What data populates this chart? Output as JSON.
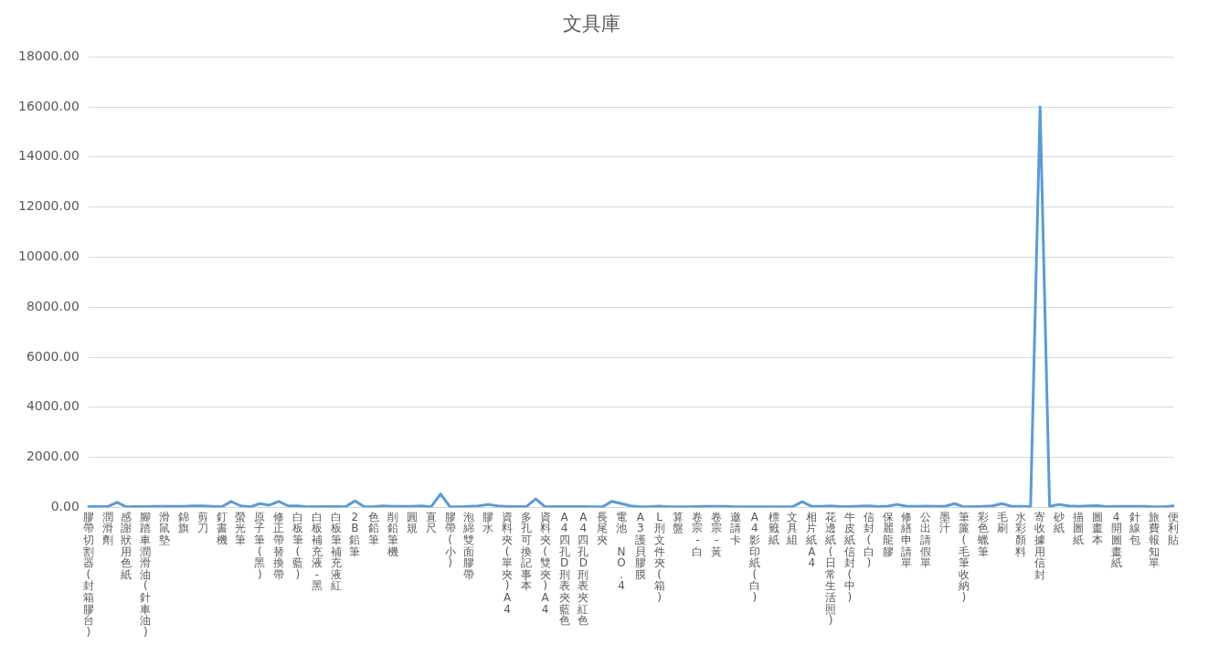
{
  "chart_data": {
    "type": "line",
    "title": "文具庫",
    "categories": [
      "膠帶切割器(封箱膠台)",
      null,
      "潤滑劑",
      null,
      "感謝狀用色紙",
      null,
      "腳踏車潤滑油(針車油)",
      null,
      "滑鼠墊",
      null,
      "錦旗",
      null,
      "剪刀",
      null,
      "釘書機",
      null,
      "螢光筆",
      null,
      "原子筆(黑)",
      null,
      "修正帶替換帶",
      null,
      "白板筆(藍)",
      null,
      "白板補充液-黑",
      null,
      "白板筆補充液紅",
      null,
      "2B鉛筆",
      null,
      "色鉛筆",
      null,
      "削鉛筆機",
      null,
      "圓規",
      null,
      "直尺",
      null,
      "膠帶(小)",
      null,
      "泡綿雙面膠帶",
      null,
      "膠水",
      null,
      "資料夾(單夾)A4",
      null,
      "多孔可換記事本",
      null,
      "資料夾(雙夾)A4",
      null,
      "A4四孔D刑表夾藍色",
      null,
      "A4四孔D刑表夾紅色",
      null,
      "長尾夾",
      null,
      "電池 NO.4",
      null,
      "A3護貝膠膜",
      null,
      "L刑文件夾(箱)",
      null,
      "算盤",
      null,
      "卷宗-白",
      null,
      "卷宗-黃",
      null,
      "邀請卡",
      null,
      "A4影印紙(白)",
      null,
      "標籤紙",
      null,
      "文具組",
      null,
      "相片紙A4",
      null,
      "花邊紙(日常生活照)",
      null,
      "牛皮紙信封(中)",
      null,
      "信封(白)",
      null,
      "保麗龍膠",
      null,
      "修繕申請單",
      null,
      "公出請假單",
      null,
      "墨汁",
      null,
      "筆簾(毛筆收納)",
      null,
      "彩色蠟筆",
      null,
      "毛刷",
      null,
      "水彩顏料",
      null,
      "寄收據用信封",
      null,
      "砂紙",
      null,
      "描圖紙",
      null,
      "圖畫本",
      null,
      "4開圖畫紙",
      null,
      "針線包",
      null,
      "旅費報知單",
      null,
      "便利貼"
    ],
    "series": [
      {
        "color": "#5b9bd5",
        "values": [
          30,
          30,
          30,
          200,
          20,
          30,
          30,
          40,
          40,
          40,
          40,
          60,
          60,
          40,
          20,
          240,
          60,
          20,
          150,
          90,
          240,
          60,
          60,
          20,
          30,
          30,
          30,
          20,
          260,
          20,
          30,
          60,
          40,
          40,
          40,
          60,
          20,
          540,
          20,
          20,
          40,
          60,
          120,
          60,
          30,
          30,
          30,
          340,
          20,
          30,
          30,
          30,
          30,
          20,
          20,
          240,
          150,
          60,
          20,
          30,
          50,
          20,
          20,
          20,
          30,
          40,
          40,
          40,
          20,
          20,
          20,
          20,
          20,
          20,
          30,
          230,
          40,
          40,
          60,
          30,
          30,
          50,
          60,
          30,
          50,
          120,
          40,
          40,
          50,
          40,
          40,
          150,
          20,
          30,
          40,
          60,
          150,
          40,
          40,
          30,
          16000,
          40,
          120,
          60,
          40,
          60,
          70,
          30,
          40,
          40,
          40,
          40,
          20,
          20,
          60
        ]
      }
    ],
    "ylim": [
      0,
      18000
    ],
    "yticks": [
      {
        "value": 0,
        "label": "0.00"
      },
      {
        "value": 2000,
        "label": "2000.00"
      },
      {
        "value": 4000,
        "label": "4000.00"
      },
      {
        "value": 6000,
        "label": "6000.00"
      },
      {
        "value": 8000,
        "label": "8000.00"
      },
      {
        "value": 10000,
        "label": "10000.00"
      },
      {
        "value": 12000,
        "label": "12000.00"
      },
      {
        "value": 14000,
        "label": "14000.00"
      },
      {
        "value": 16000,
        "label": "16000.00"
      },
      {
        "value": 18000,
        "label": "18000.00"
      }
    ],
    "grid": "y",
    "legend": false,
    "marker": "none",
    "line_style": "solid"
  }
}
